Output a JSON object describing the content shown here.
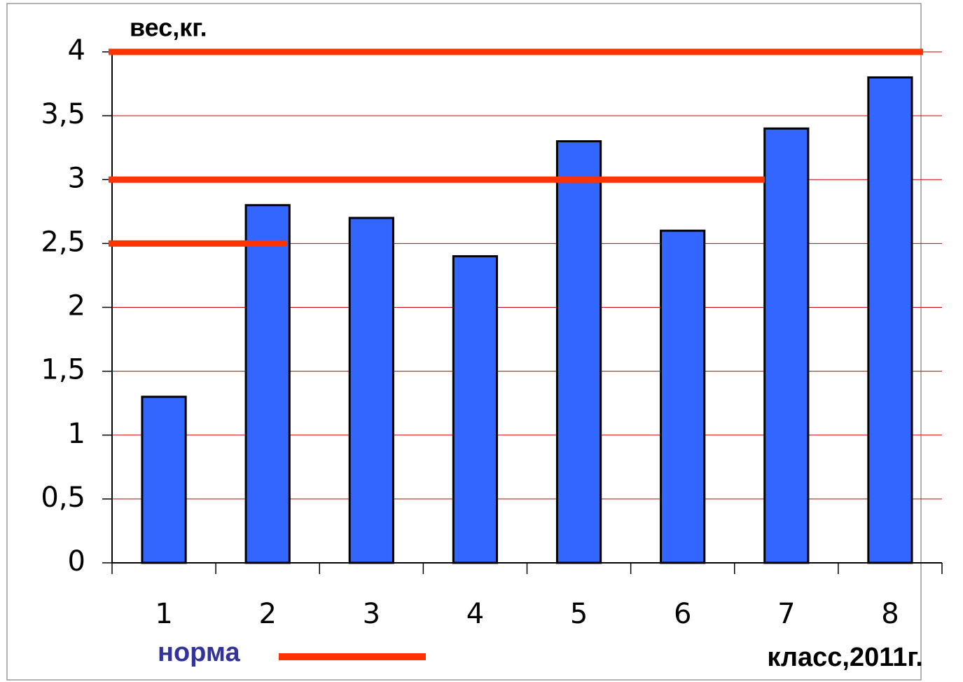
{
  "chart_data": {
    "type": "bar",
    "ylabel": "вес,кг.",
    "xlabel": "класс,2011г.",
    "categories": [
      "1",
      "2",
      "3",
      "4",
      "5",
      "6",
      "7",
      "8"
    ],
    "values": [
      1.3,
      2.8,
      2.7,
      2.4,
      3.3,
      2.6,
      3.4,
      3.8
    ],
    "color": "#3366ff",
    "ylim": [
      0,
      4
    ],
    "yticks": [
      0,
      {
        "value": 0.5,
        "label": "0,5"
      },
      1,
      {
        "value": 1.5,
        "label": "1,5"
      },
      2,
      {
        "value": 2.5,
        "label": "2,5"
      },
      3,
      {
        "value": 3.5,
        "label": "3,5"
      },
      4
    ],
    "grid": true,
    "grid_color": "#cc0000",
    "norm": {
      "name": "норма",
      "color": "#ff3300",
      "values": [
        2.5,
        3,
        4
      ]
    }
  }
}
